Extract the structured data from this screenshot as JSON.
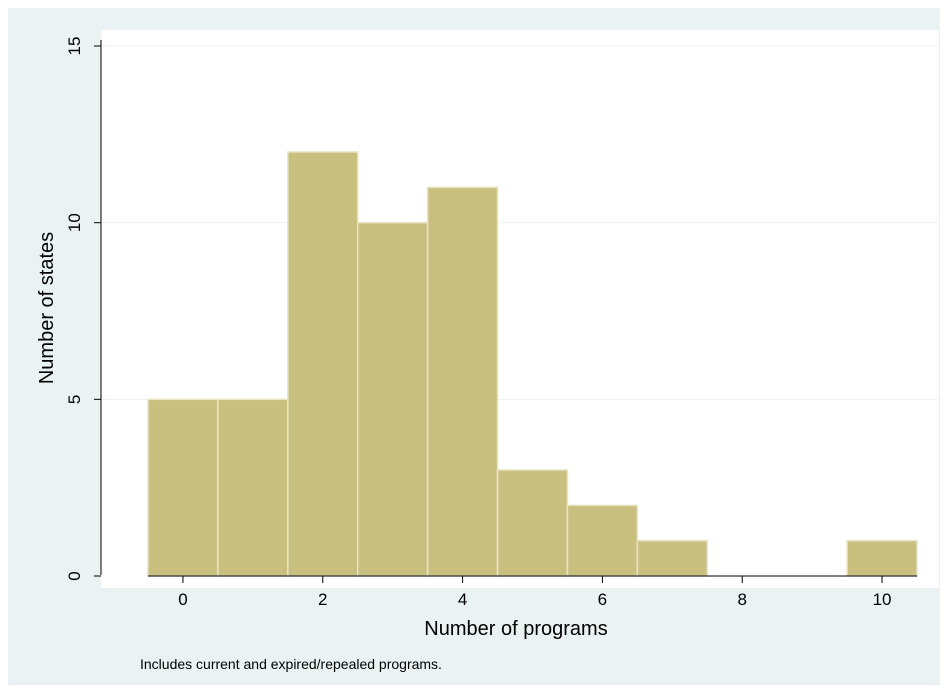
{
  "chart_data": {
    "type": "bar",
    "xlabel": "Number of programs",
    "ylabel": "Number of states",
    "note": "Includes current and expired/repealed programs.",
    "x": [
      0,
      1,
      2,
      3,
      4,
      5,
      6,
      7,
      8,
      9,
      10
    ],
    "values": [
      5,
      5,
      12,
      10,
      11,
      3,
      2,
      1,
      0,
      0,
      1
    ],
    "bin_width": 1,
    "xlim": [
      -0.5,
      10.5
    ],
    "ylim": [
      0,
      15
    ],
    "xticks": [
      "0",
      "2",
      "4",
      "6",
      "8",
      "10"
    ],
    "yticks": [
      "0",
      "5",
      "10",
      "15"
    ],
    "grid": true,
    "colors": {
      "bar_fill": "#c9bf7f",
      "bar_edge": "#e8e4c4",
      "plot_bg": "#ffffff",
      "outer_bg": "#eaf2f3",
      "grid": "#eaf2f3"
    }
  }
}
